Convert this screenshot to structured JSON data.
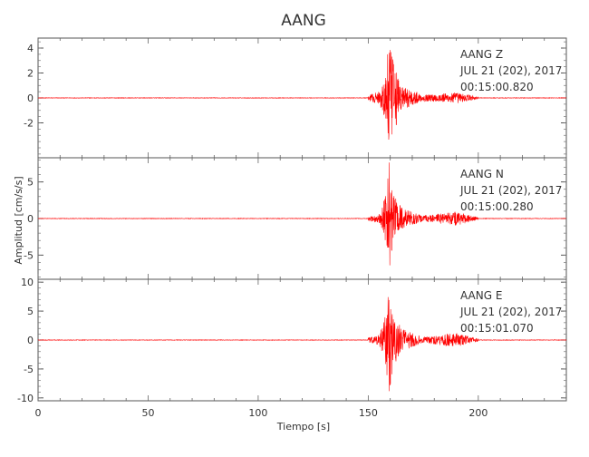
{
  "chart_data": {
    "type": "line",
    "title": "AANG",
    "xlabel": "Tiempo [s]",
    "ylabel": "Amplitud [cm/s/s]",
    "xlim": [
      0,
      240
    ],
    "xticks": [
      0,
      50,
      100,
      150,
      200
    ],
    "grid": false,
    "line_color": "#ff0000",
    "panels": [
      {
        "name": "AANG-Z",
        "ylim": [
          -4.8,
          4.8
        ],
        "yticks": [
          4,
          2,
          0,
          -2
        ],
        "annotation": {
          "station_line": "AANG    Z",
          "date_line": "JUL 21 (202), 2017",
          "time_line": "00:15:00.820"
        },
        "events": [
          {
            "time": 150,
            "amplitude": 0.25
          },
          {
            "time": 155,
            "amplitude": 0.5
          },
          {
            "time": 158,
            "amplitude": 2.2
          },
          {
            "time": 159.5,
            "amplitude": 4.8
          },
          {
            "time": 161,
            "amplitude": 3.2
          },
          {
            "time": 165,
            "amplitude": 1.0
          },
          {
            "time": 175,
            "amplitude": 0.25
          },
          {
            "time": 190,
            "amplitude": 0.45
          },
          {
            "time": 200,
            "amplitude": 0.1
          }
        ]
      },
      {
        "name": "AANG-N",
        "ylim": [
          -8.3,
          8.3
        ],
        "yticks": [
          5,
          0,
          -5
        ],
        "annotation": {
          "station_line": "AANG    N",
          "date_line": "JUL 21 (202), 2017",
          "time_line": "00:15:00.280"
        },
        "events": [
          {
            "time": 150,
            "amplitude": 0.3
          },
          {
            "time": 155,
            "amplitude": 0.7
          },
          {
            "time": 158,
            "amplitude": 3.5
          },
          {
            "time": 159.5,
            "amplitude": 8.0
          },
          {
            "time": 161,
            "amplitude": 4.5
          },
          {
            "time": 165,
            "amplitude": 1.5
          },
          {
            "time": 175,
            "amplitude": 0.4
          },
          {
            "time": 190,
            "amplitude": 1.0
          },
          {
            "time": 200,
            "amplitude": 0.15
          }
        ]
      },
      {
        "name": "AANG-E",
        "ylim": [
          -10.5,
          10.5
        ],
        "yticks": [
          10,
          5,
          0,
          -5,
          -10
        ],
        "annotation": {
          "station_line": "AANG    E",
          "date_line": "JUL 21 (202), 2017",
          "time_line": "00:15:01.070"
        },
        "events": [
          {
            "time": 150,
            "amplitude": 0.4
          },
          {
            "time": 155,
            "amplitude": 0.9
          },
          {
            "time": 158,
            "amplitude": 4.5
          },
          {
            "time": 159.5,
            "amplitude": 10.5
          },
          {
            "time": 161,
            "amplitude": 6.0
          },
          {
            "time": 165,
            "amplitude": 2.0
          },
          {
            "time": 175,
            "amplitude": 0.5
          },
          {
            "time": 190,
            "amplitude": 1.3
          },
          {
            "time": 200,
            "amplitude": 0.2
          }
        ]
      }
    ]
  }
}
